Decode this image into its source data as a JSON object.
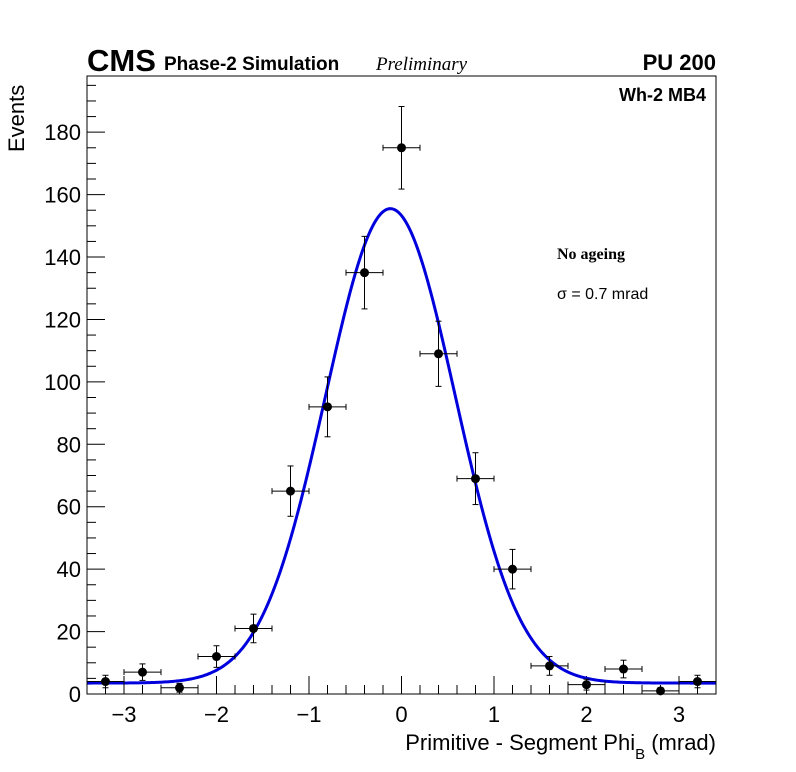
{
  "header": {
    "experiment": "CMS",
    "simulation": "Phase-2 Simulation",
    "status": "Preliminary",
    "pileup": "PU 200"
  },
  "chart_data": {
    "type": "scatter",
    "title": "",
    "xlabel": "Primitive - Segment Phi",
    "xlabel_sub": "B",
    "xlabel_unit": " (mrad)",
    "ylabel": "Events",
    "xlim": [
      -3.4,
      3.4
    ],
    "ylim": [
      0,
      198
    ],
    "x_ticks": [
      -3,
      -2,
      -1,
      0,
      1,
      2,
      3
    ],
    "x_tick_labels": [
      "−3",
      "−2",
      "−1",
      "0",
      "1",
      "2",
      "3"
    ],
    "y_ticks": [
      0,
      20,
      40,
      60,
      80,
      100,
      120,
      140,
      160,
      180
    ],
    "y_tick_labels": [
      "0",
      "20",
      "40",
      "60",
      "80",
      "100",
      "120",
      "140",
      "160",
      "180"
    ],
    "bin_width": 0.4,
    "series": [
      {
        "name": "Data",
        "x": [
          -3.2,
          -2.8,
          -2.4,
          -2.0,
          -1.6,
          -1.2,
          -0.8,
          -0.4,
          0.0,
          0.4,
          0.8,
          1.2,
          1.6,
          2.0,
          2.4,
          2.8,
          3.2
        ],
        "y": [
          4,
          7,
          2,
          12,
          21,
          65,
          92,
          135,
          175,
          109,
          69,
          40,
          9,
          3,
          8,
          1,
          4
        ],
        "color": "#000000"
      },
      {
        "name": "Gaussian fit",
        "fit": {
          "constant": 3.5,
          "amplitude": 152,
          "mean": -0.12,
          "sigma": 0.7
        },
        "color": "#0000dd"
      }
    ],
    "annotations": {
      "region": "Wh-2 MB4",
      "condition": "No ageing",
      "sigma_symbol": "σ",
      "sigma_text": " = 0.7 mrad"
    }
  }
}
